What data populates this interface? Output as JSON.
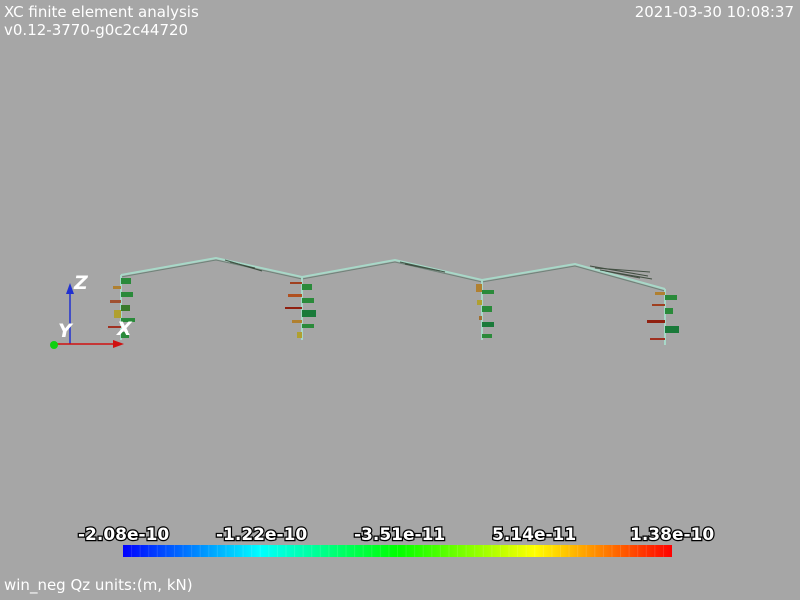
{
  "header": {
    "title": "XC finite element analysis",
    "version": "v0.12-3770-g0c2c44720",
    "timestamp": "2021-03-30 10:08:37"
  },
  "axes": {
    "x": "X",
    "y": "Y",
    "z": "Z"
  },
  "colors": {
    "background": "#a6a6a6",
    "x_axis": "#d01010",
    "y_axis": "#10d010",
    "z_axis": "#2030d0",
    "frame_line": "#a8d8c8"
  },
  "colorbar": {
    "ticks": [
      "-2.08e-10",
      "-1.22e-10",
      "-3.51e-11",
      "5.14e-11",
      "1.38e-10"
    ],
    "min": -2.08e-10,
    "max": 1.38e-10,
    "colormap": "rainbow"
  },
  "footer": {
    "caption": "win_neg Qz units:(m, kN)"
  }
}
